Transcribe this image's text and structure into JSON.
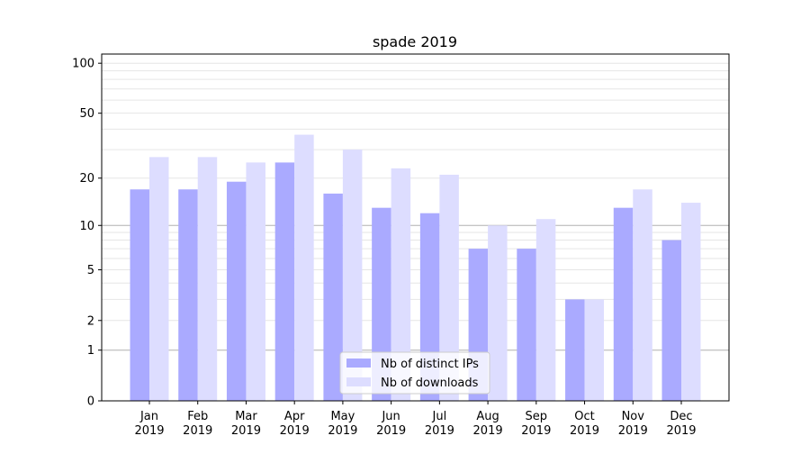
{
  "chart_data": {
    "type": "bar",
    "title": "spade 2019",
    "xlabel": "",
    "ylabel": "",
    "yscale": "log10(1+y)",
    "ylim": [
      0,
      113.5
    ],
    "yticks": [
      0,
      1,
      2,
      5,
      10,
      20,
      50,
      100
    ],
    "ytick_labels": [
      "0",
      "1",
      "2",
      "5",
      "10",
      "20",
      "50",
      "100"
    ],
    "categories": [
      [
        "Jan",
        "2019"
      ],
      [
        "Feb",
        "2019"
      ],
      [
        "Mar",
        "2019"
      ],
      [
        "Apr",
        "2019"
      ],
      [
        "May",
        "2019"
      ],
      [
        "Jun",
        "2019"
      ],
      [
        "Jul",
        "2019"
      ],
      [
        "Aug",
        "2019"
      ],
      [
        "Sep",
        "2019"
      ],
      [
        "Oct",
        "2019"
      ],
      [
        "Nov",
        "2019"
      ],
      [
        "Dec",
        "2019"
      ]
    ],
    "series": [
      {
        "name": "Nb of distinct IPs",
        "color": "#aaaaff",
        "values": [
          17,
          17,
          19,
          25,
          16,
          13,
          12,
          7,
          7,
          3,
          13,
          8
        ]
      },
      {
        "name": "Nb of downloads",
        "color": "#ddddff",
        "values": [
          27,
          27,
          25,
          37,
          30,
          23,
          21,
          10,
          11,
          3,
          17,
          14
        ]
      }
    ],
    "grid": true,
    "legend_position": "lower-center"
  }
}
